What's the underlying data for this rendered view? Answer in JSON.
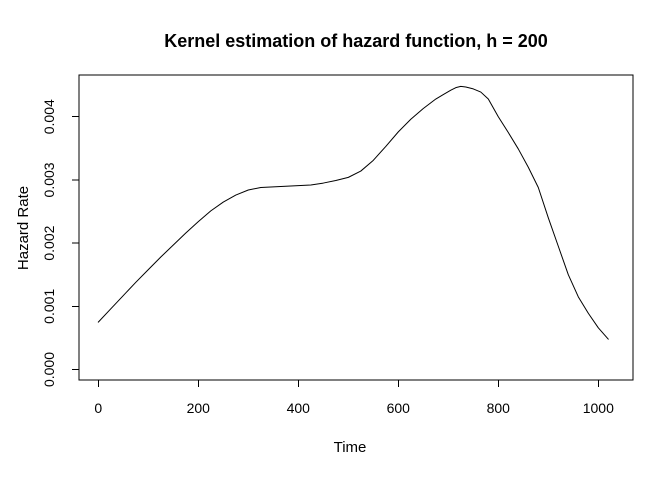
{
  "figure": {
    "background": "#ffffff",
    "foreground": "#000000"
  },
  "chart_data": {
    "type": "line",
    "title": "Kernel estimation of hazard function, h = 200",
    "xlabel": "Time",
    "ylabel": "Hazard Rate",
    "xlim": [
      -38.6,
      1069.4
    ],
    "ylim": [
      -0.000166,
      0.00466
    ],
    "grid": false,
    "legend": false,
    "line_color": "#000000",
    "x_ticks": [
      {
        "v": 0,
        "label": "0"
      },
      {
        "v": 200,
        "label": "200"
      },
      {
        "v": 400,
        "label": "400"
      },
      {
        "v": 600,
        "label": "600"
      },
      {
        "v": 800,
        "label": "800"
      },
      {
        "v": 1000,
        "label": "1000"
      }
    ],
    "y_ticks": [
      {
        "v": 0.0,
        "label": "0.000"
      },
      {
        "v": 0.001,
        "label": "0.001"
      },
      {
        "v": 0.002,
        "label": "0.002"
      },
      {
        "v": 0.003,
        "label": "0.003"
      },
      {
        "v": 0.004,
        "label": "0.004"
      }
    ],
    "series": [
      {
        "name": "kernel-hazard-estimate",
        "color": "#000000",
        "x": [
          0,
          25,
          50,
          75,
          100,
          125,
          150,
          175,
          200,
          225,
          250,
          275,
          300,
          325,
          350,
          375,
          400,
          425,
          450,
          475,
          500,
          525,
          550,
          575,
          600,
          625,
          650,
          675,
          690,
          705,
          715,
          725,
          735,
          750,
          765,
          780,
          800,
          820,
          840,
          860,
          880,
          900,
          920,
          940,
          960,
          980,
          1000,
          1020
        ],
        "y": [
          0.00075,
          0.00096,
          0.00117,
          0.00138,
          0.00158,
          0.00178,
          0.00197,
          0.00216,
          0.00234,
          0.00251,
          0.00265,
          0.00276,
          0.00284,
          0.00288,
          0.00289,
          0.0029,
          0.00291,
          0.00292,
          0.00295,
          0.00299,
          0.00304,
          0.00314,
          0.00331,
          0.00353,
          0.00376,
          0.00396,
          0.00413,
          0.00428,
          0.00435,
          0.00442,
          0.00446,
          0.00448,
          0.00447,
          0.00444,
          0.00439,
          0.00428,
          0.004,
          0.00375,
          0.00349,
          0.0032,
          0.00288,
          0.0024,
          0.00195,
          0.0015,
          0.00115,
          0.00089,
          0.00066,
          0.00048
        ]
      }
    ]
  }
}
